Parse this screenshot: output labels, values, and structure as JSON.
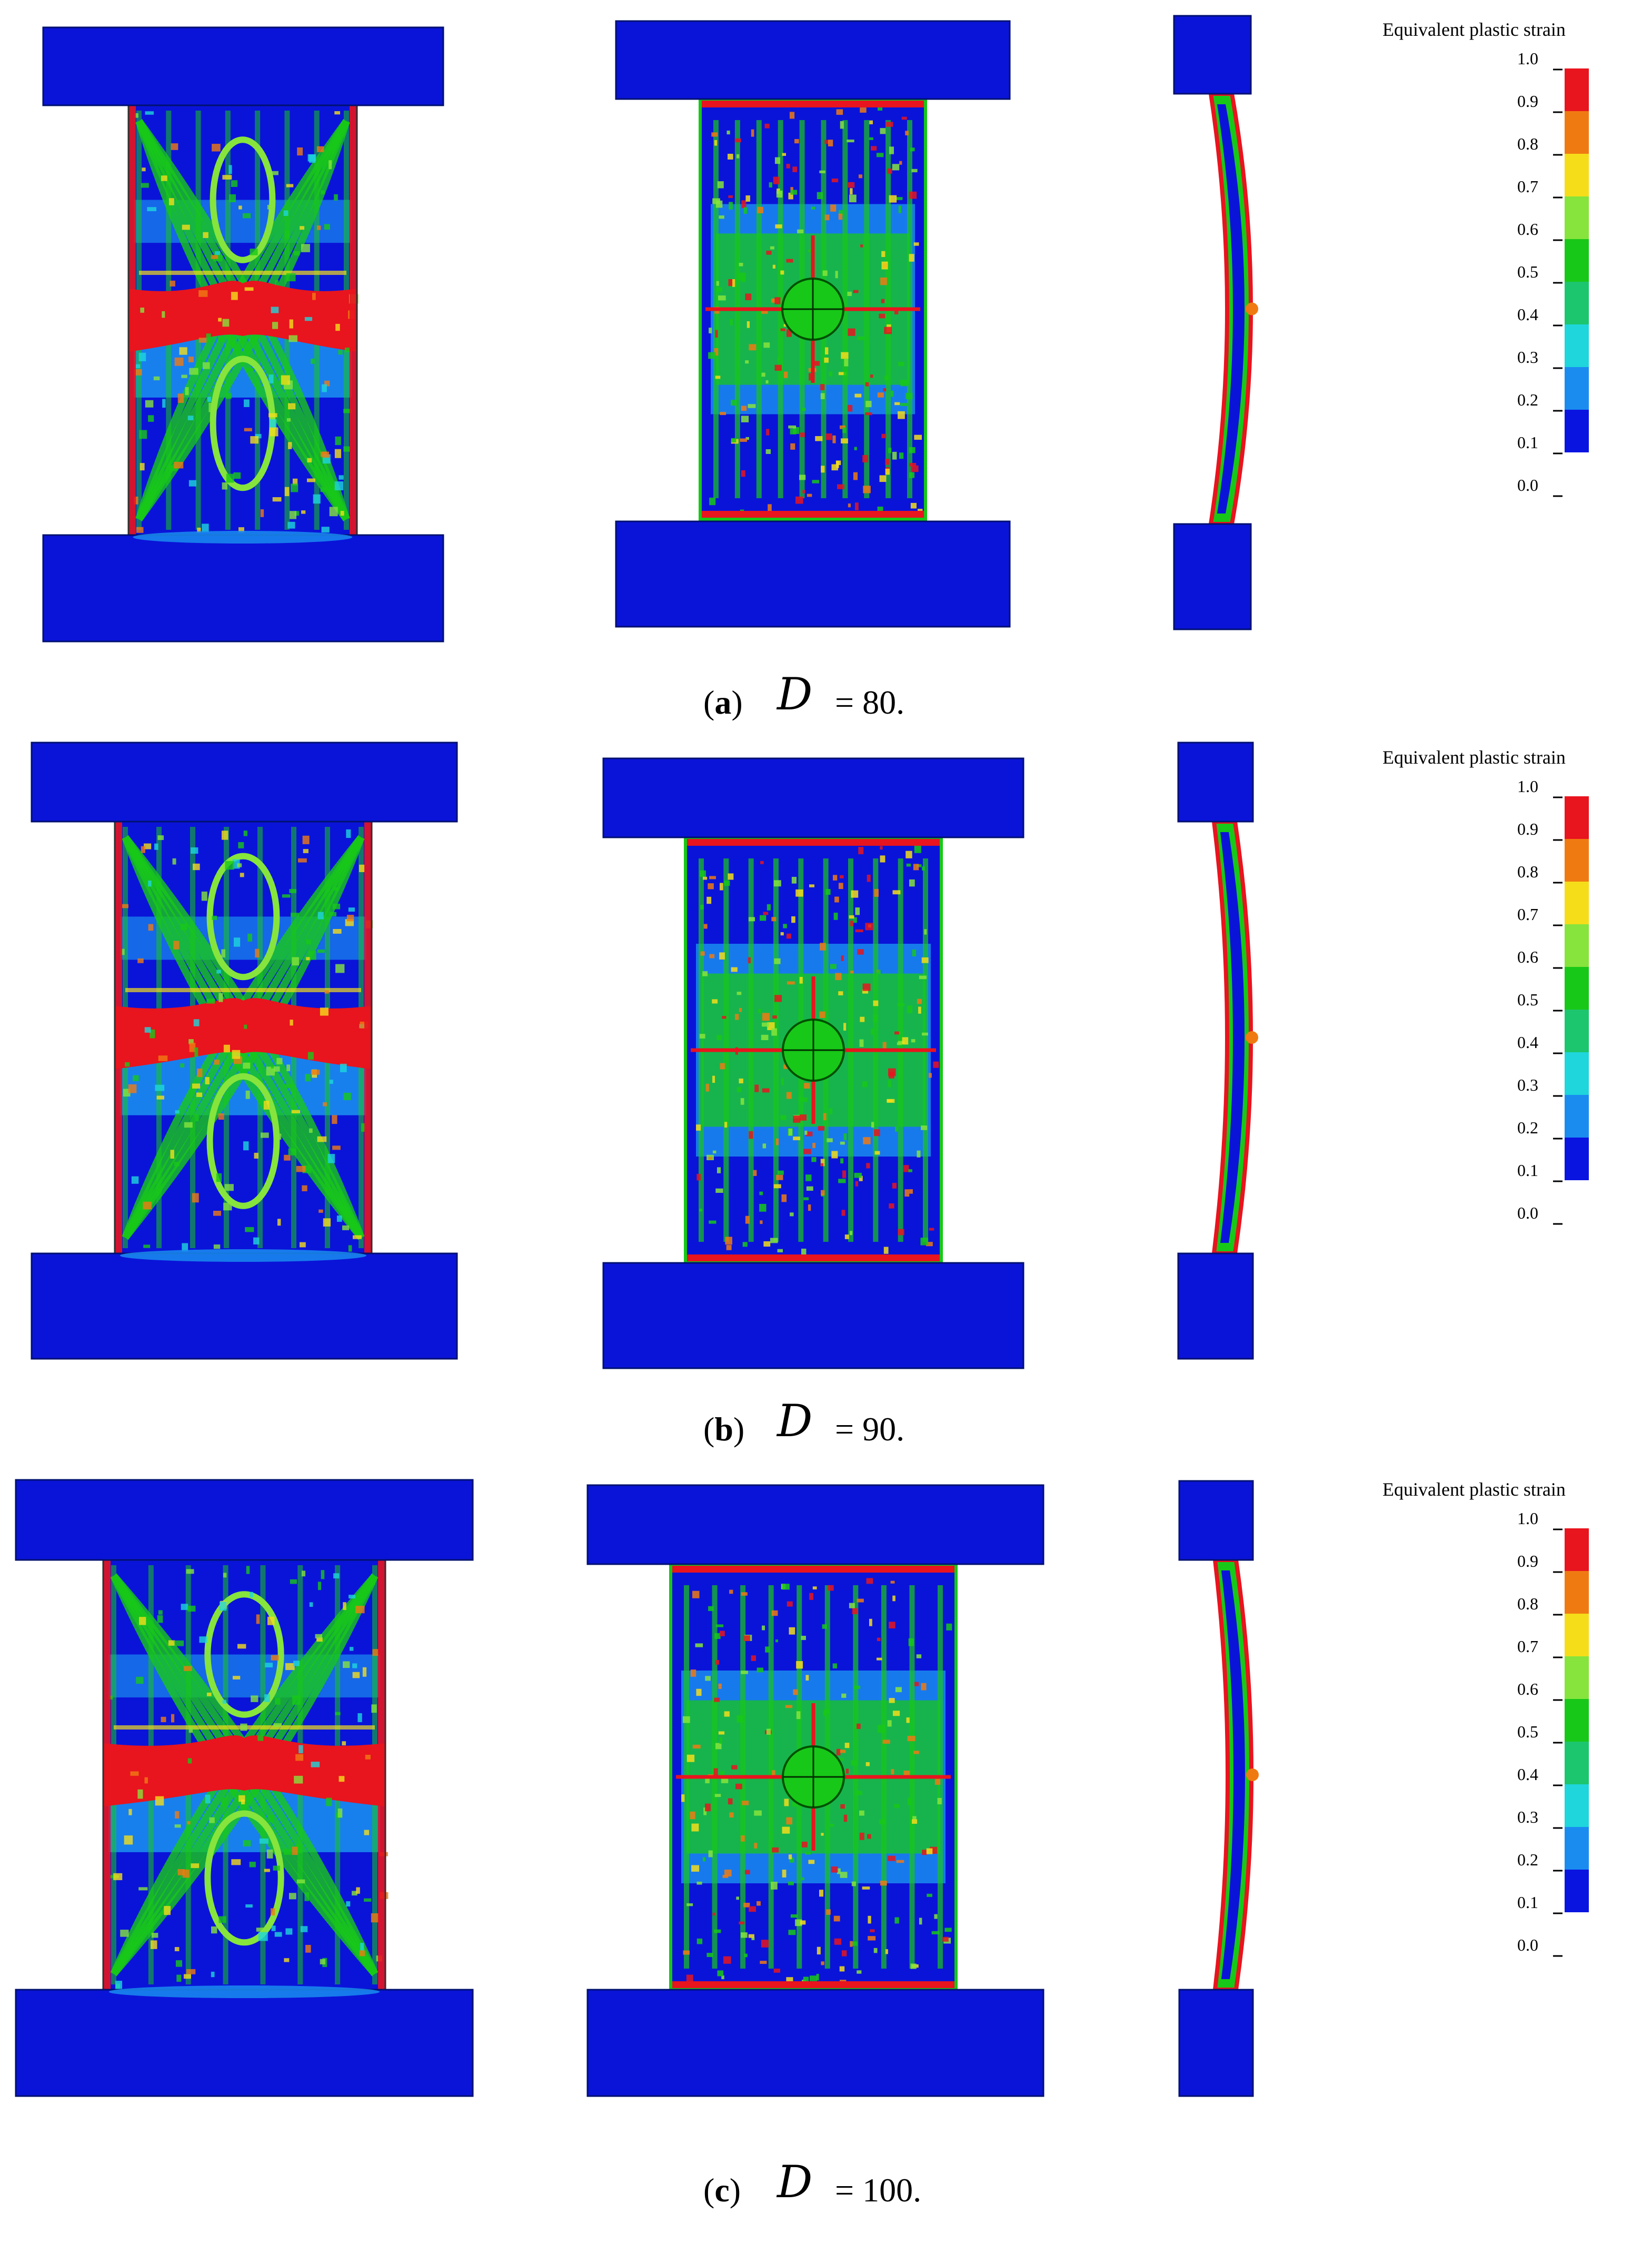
{
  "figure": {
    "rows": [
      {
        "letter": "a",
        "var": "D",
        "value_text": "= 80."
      },
      {
        "letter": "b",
        "var": "D",
        "value_text": "= 90."
      },
      {
        "letter": "c",
        "var": "D",
        "value_text": "= 100."
      }
    ],
    "legend": {
      "title": "Equivalent plastic strain",
      "ticks": [
        "1.0",
        "0.9",
        "0.8",
        "0.7",
        "0.6",
        "0.5",
        "0.4",
        "0.3",
        "0.2",
        "0.1",
        "0.0"
      ],
      "colors": [
        "#e8141e",
        "#f07a12",
        "#f5dd1a",
        "#86e43c",
        "#18c818",
        "#1cc66e",
        "#1ed6dc",
        "#1a8cf0",
        "#0a14e0"
      ]
    },
    "palette": {
      "blue": "#0a14d8",
      "lightblue": "#1a8cf0",
      "cyan": "#1ed6dc",
      "teal": "#1cc66e",
      "green": "#18c818",
      "lime": "#86e43c",
      "yellow": "#f5dd1a",
      "orange": "#f07a12",
      "red": "#e8141e"
    }
  }
}
